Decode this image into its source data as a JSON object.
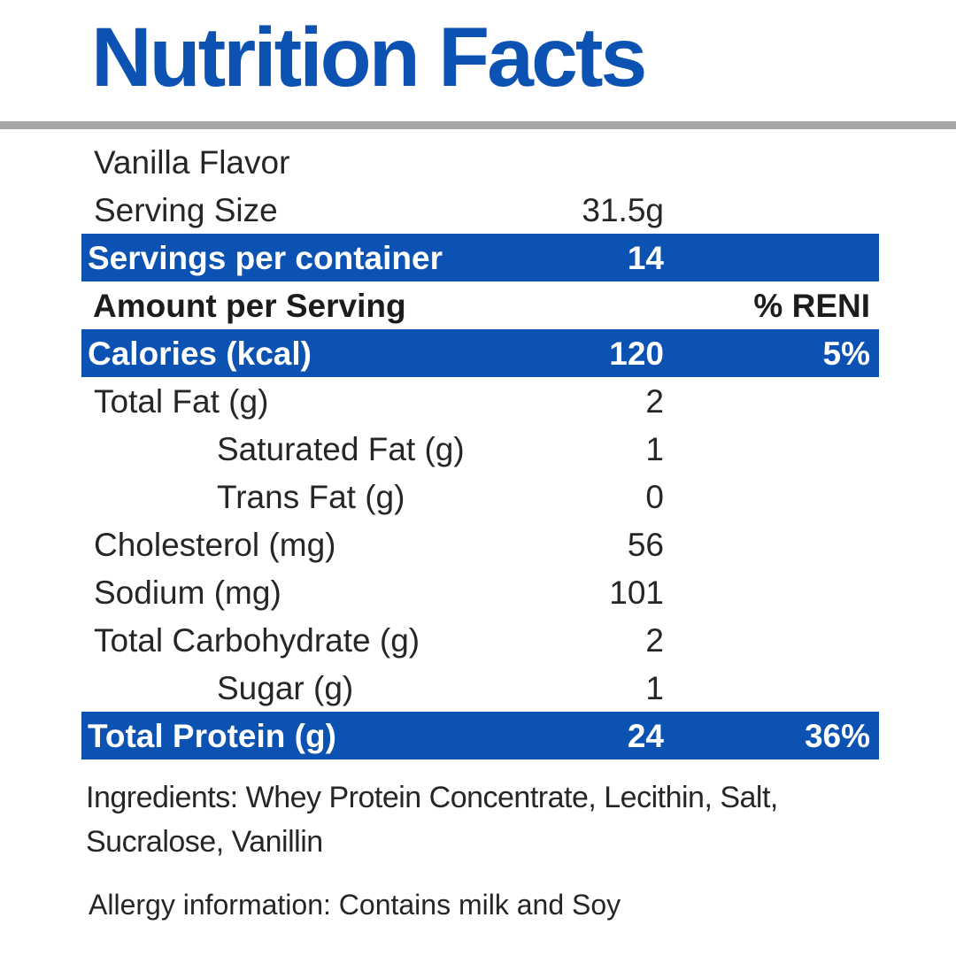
{
  "title": "Nutrition Facts",
  "colors": {
    "accent_blue": "#0c52b2",
    "divider_gray": "#a6a6a6",
    "bar_text": "#ffffff",
    "body_text": "#262626"
  },
  "rows": [
    {
      "label": "Vanilla Flavor",
      "value": "",
      "pct": "",
      "style": "plain"
    },
    {
      "label": "Serving Size",
      "value": "31.5g",
      "pct": "",
      "style": "plain"
    },
    {
      "label": "Servings per container",
      "value": "14",
      "pct": "",
      "style": "bar"
    },
    {
      "label": "Amount per Serving",
      "value": "",
      "pct": "% RENI",
      "style": "header"
    },
    {
      "label": "Calories (kcal)",
      "value": "120",
      "pct": "5%",
      "style": "bar"
    },
    {
      "label": "Total Fat (g)",
      "value": "2",
      "pct": "",
      "style": "plain"
    },
    {
      "label": "Saturated Fat (g)",
      "value": "1",
      "pct": "",
      "style": "indent"
    },
    {
      "label": "Trans Fat (g)",
      "value": "0",
      "pct": "",
      "style": "indent"
    },
    {
      "label": "Cholesterol (mg)",
      "value": "56",
      "pct": "",
      "style": "plain"
    },
    {
      "label": "Sodium (mg)",
      "value": "101",
      "pct": "",
      "style": "plain"
    },
    {
      "label": "Total Carbohydrate (g)",
      "value": "2",
      "pct": "",
      "style": "plain"
    },
    {
      "label": "Sugar (g)",
      "value": "1",
      "pct": "",
      "style": "indent"
    },
    {
      "label": "Total Protein (g)",
      "value": "24",
      "pct": "36%",
      "style": "bar"
    }
  ],
  "ingredients": "Ingredients: Whey Protein Concentrate, Lecithin, Salt, Sucralose, Vanillin",
  "allergy": "Allergy information: Contains milk and Soy"
}
